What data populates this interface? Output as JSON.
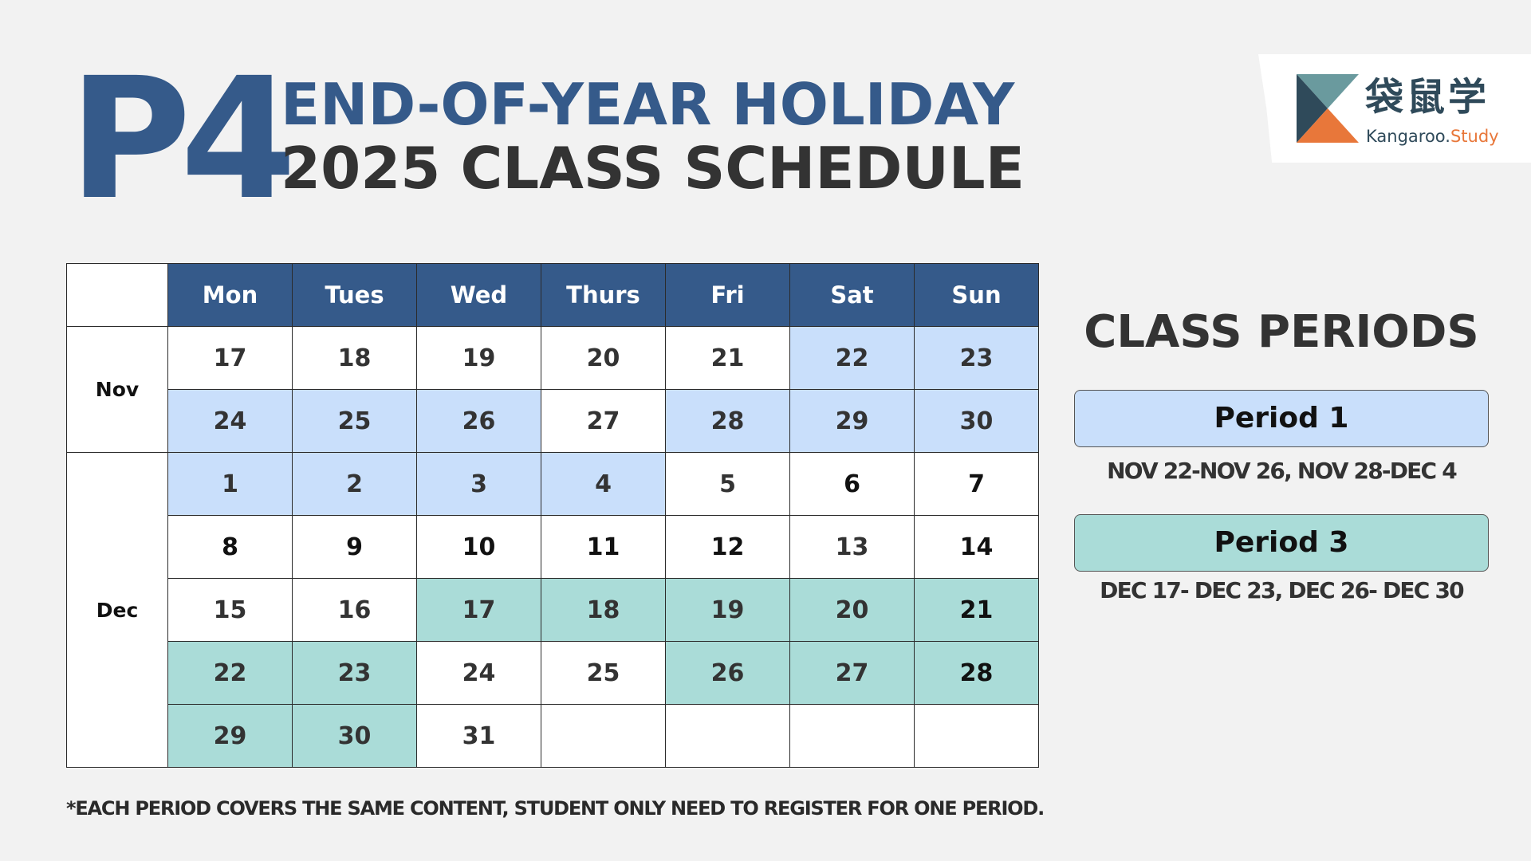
{
  "header": {
    "grade": "P4",
    "title_line1": "END-OF-YEAR HOLIDAY",
    "title_line2": "2025 CLASS SCHEDULE"
  },
  "logo": {
    "chinese_name": "袋鼠学",
    "english_name_main": "Kangaroo.",
    "english_name_suffix": "Study",
    "colors": {
      "top": "#6a9a9e",
      "left": "#2f4a5a",
      "bottom": "#e8773a"
    }
  },
  "calendar": {
    "days": [
      "Mon",
      "Tues",
      "Wed",
      "Thurs",
      "Fri",
      "Sat",
      "Sun"
    ],
    "months": [
      {
        "label": "Nov",
        "weeks": [
          [
            {
              "d": "17",
              "c": ""
            },
            {
              "d": "18",
              "c": ""
            },
            {
              "d": "19",
              "c": ""
            },
            {
              "d": "20",
              "c": ""
            },
            {
              "d": "21",
              "c": ""
            },
            {
              "d": "22",
              "c": "p1"
            },
            {
              "d": "23",
              "c": "p1"
            }
          ],
          [
            {
              "d": "24",
              "c": "p1"
            },
            {
              "d": "25",
              "c": "p1"
            },
            {
              "d": "26",
              "c": "p1"
            },
            {
              "d": "27",
              "c": ""
            },
            {
              "d": "28",
              "c": "p1"
            },
            {
              "d": "29",
              "c": "p1"
            },
            {
              "d": "30",
              "c": "p1"
            }
          ]
        ]
      },
      {
        "label": "Dec",
        "weeks": [
          [
            {
              "d": "1",
              "c": "p1"
            },
            {
              "d": "2",
              "c": "p1"
            },
            {
              "d": "3",
              "c": "p1"
            },
            {
              "d": "4",
              "c": "p1"
            },
            {
              "d": "5",
              "c": ""
            },
            {
              "d": "6",
              "c": "",
              "dark": true
            },
            {
              "d": "7",
              "c": "",
              "dark": true
            }
          ],
          [
            {
              "d": "8",
              "c": "",
              "dark": true
            },
            {
              "d": "9",
              "c": "",
              "dark": true
            },
            {
              "d": "10",
              "c": "",
              "dark": true
            },
            {
              "d": "11",
              "c": "",
              "dark": true
            },
            {
              "d": "12",
              "c": "",
              "dark": true
            },
            {
              "d": "13",
              "c": ""
            },
            {
              "d": "14",
              "c": "",
              "dark": true
            }
          ],
          [
            {
              "d": "15",
              "c": ""
            },
            {
              "d": "16",
              "c": ""
            },
            {
              "d": "17",
              "c": "p3"
            },
            {
              "d": "18",
              "c": "p3"
            },
            {
              "d": "19",
              "c": "p3"
            },
            {
              "d": "20",
              "c": "p3"
            },
            {
              "d": "21",
              "c": "p3",
              "dark": true
            }
          ],
          [
            {
              "d": "22",
              "c": "p3"
            },
            {
              "d": "23",
              "c": "p3"
            },
            {
              "d": "24",
              "c": ""
            },
            {
              "d": "25",
              "c": ""
            },
            {
              "d": "26",
              "c": "p3"
            },
            {
              "d": "27",
              "c": "p3"
            },
            {
              "d": "28",
              "c": "p3",
              "dark": true
            }
          ],
          [
            {
              "d": "29",
              "c": "p3"
            },
            {
              "d": "30",
              "c": "p3"
            },
            {
              "d": "31",
              "c": ""
            },
            {
              "d": "",
              "c": ""
            },
            {
              "d": "",
              "c": ""
            },
            {
              "d": "",
              "c": ""
            },
            {
              "d": "",
              "c": ""
            }
          ]
        ]
      }
    ]
  },
  "class_periods": {
    "title": "CLASS PERIODS",
    "periods": [
      {
        "label": "Period 1",
        "dates": "NOV 22-NOV 26, NOV 28-DEC 4",
        "color": "#c9dffb"
      },
      {
        "label": "Period 3",
        "dates": "DEC 17- DEC 23, DEC 26- DEC 30",
        "color": "#aadcd8"
      }
    ]
  },
  "footnote": "*EACH PERIOD COVERS THE SAME  CONTENT, STUDENT ONLY NEED TO REGISTER FOR ONE PERIOD.",
  "colors": {
    "brand_blue": "#355a8a",
    "period1": "#c9dffb",
    "period3": "#aadcd8",
    "background": "#f2f2f2"
  }
}
